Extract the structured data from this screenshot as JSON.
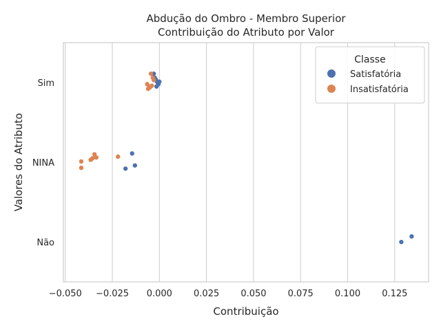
{
  "chart_data": {
    "type": "scatter",
    "title_line1": "Abdução do Ombro - Membro Superior",
    "title_line2": "Contribuição do Atributo por Valor",
    "xlabel": "Contribuição",
    "ylabel": "Valores do Atributo",
    "xlim": [
      -0.051,
      0.143
    ],
    "x_ticks": [
      -0.05,
      -0.025,
      0.0,
      0.025,
      0.05,
      0.075,
      0.1,
      0.125
    ],
    "x_tick_labels": [
      "−0.050",
      "−0.025",
      "0.000",
      "0.025",
      "0.050",
      "0.075",
      "0.100",
      "0.125"
    ],
    "categories": [
      "Sim",
      "NINA",
      "Não"
    ],
    "grid": true,
    "legend": {
      "title": "Classe",
      "position": "top-right"
    },
    "series": [
      {
        "name": "Satisfatória",
        "color": "#4c72b0",
        "points": [
          {
            "x": -0.003,
            "cat": "Sim",
            "jitter": 0.11
          },
          {
            "x": -0.0025,
            "cat": "Sim",
            "jitter": 0.06
          },
          {
            "x": -0.002,
            "cat": "Sim",
            "jitter": 0.03
          },
          {
            "x": -0.0015,
            "cat": "Sim",
            "jitter": 0.02
          },
          {
            "x": -0.001,
            "cat": "Sim",
            "jitter": 0.0
          },
          {
            "x": -0.0005,
            "cat": "Sim",
            "jitter": -0.02
          },
          {
            "x": 0.0,
            "cat": "Sim",
            "jitter": 0.01
          },
          {
            "x": -0.0015,
            "cat": "Sim",
            "jitter": -0.05
          },
          {
            "x": -0.002,
            "cat": "Sim",
            "jitter": 0.04
          },
          {
            "x": -0.0145,
            "cat": "NINA",
            "jitter": 0.11
          },
          {
            "x": -0.013,
            "cat": "NINA",
            "jitter": -0.04
          },
          {
            "x": -0.018,
            "cat": "NINA",
            "jitter": -0.08
          },
          {
            "x": 0.134,
            "cat": "Não",
            "jitter": 0.07
          },
          {
            "x": 0.1285,
            "cat": "Não",
            "jitter": 0.0
          }
        ]
      },
      {
        "name": "Insatisfatória",
        "color": "#dd8452",
        "points": [
          {
            "x": -0.0045,
            "cat": "Sim",
            "jitter": 0.11
          },
          {
            "x": -0.0035,
            "cat": "Sim",
            "jitter": 0.06
          },
          {
            "x": -0.003,
            "cat": "Sim",
            "jitter": 0.03
          },
          {
            "x": -0.0065,
            "cat": "Sim",
            "jitter": -0.02
          },
          {
            "x": -0.0055,
            "cat": "Sim",
            "jitter": -0.05
          },
          {
            "x": -0.006,
            "cat": "Sim",
            "jitter": -0.08
          },
          {
            "x": -0.004,
            "cat": "Sim",
            "jitter": -0.04
          },
          {
            "x": -0.005,
            "cat": "Sim",
            "jitter": -0.06
          },
          {
            "x": -0.022,
            "cat": "NINA",
            "jitter": 0.07
          },
          {
            "x": -0.0345,
            "cat": "NINA",
            "jitter": 0.1
          },
          {
            "x": -0.0335,
            "cat": "NINA",
            "jitter": 0.06
          },
          {
            "x": -0.0355,
            "cat": "NINA",
            "jitter": 0.05
          },
          {
            "x": -0.0365,
            "cat": "NINA",
            "jitter": 0.03
          },
          {
            "x": -0.0415,
            "cat": "NINA",
            "jitter": 0.01
          },
          {
            "x": -0.0415,
            "cat": "NINA",
            "jitter": -0.07
          }
        ]
      }
    ]
  }
}
